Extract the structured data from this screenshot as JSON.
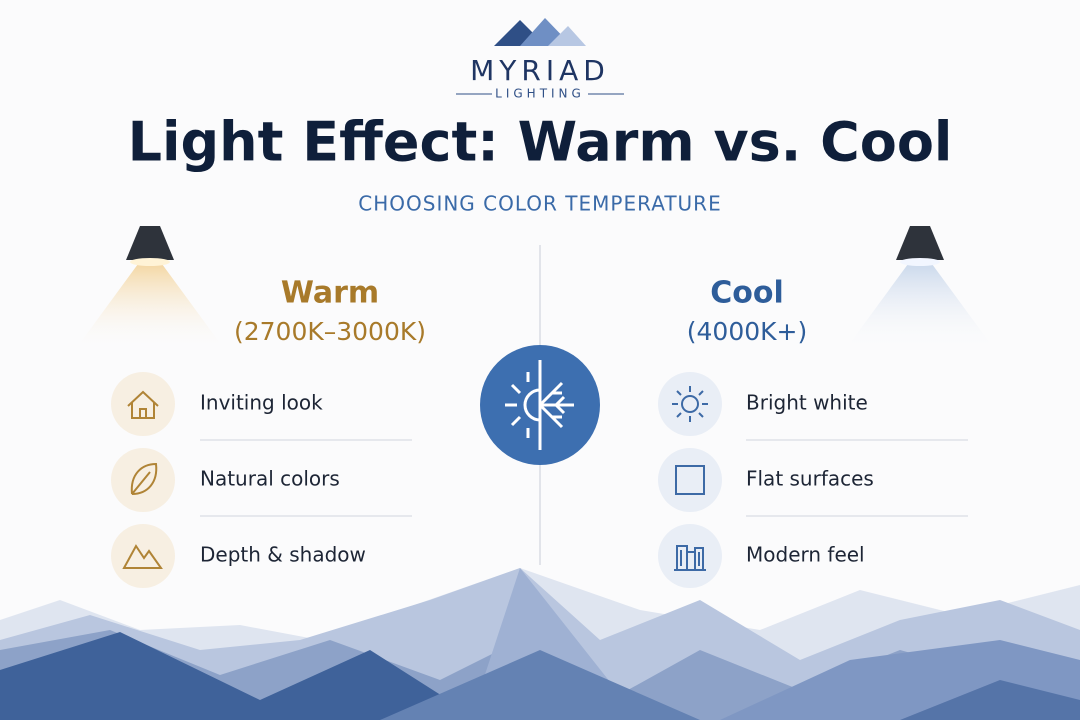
{
  "brand": {
    "name": "MYRIAD",
    "tagline": "LIGHTING"
  },
  "header": {
    "title": "Light Effect: Warm vs. Cool",
    "subtitle": "CHOOSING COLOR TEMPERATURE"
  },
  "warm": {
    "title": "Warm",
    "range": "(2700K–3000K)",
    "items": [
      "Inviting look",
      "Natural colors",
      "Depth & shadow"
    ]
  },
  "cool": {
    "title": "Cool",
    "range": "(4000K+)",
    "items": [
      "Bright white",
      "Flat surfaces",
      "Modern feel"
    ]
  }
}
